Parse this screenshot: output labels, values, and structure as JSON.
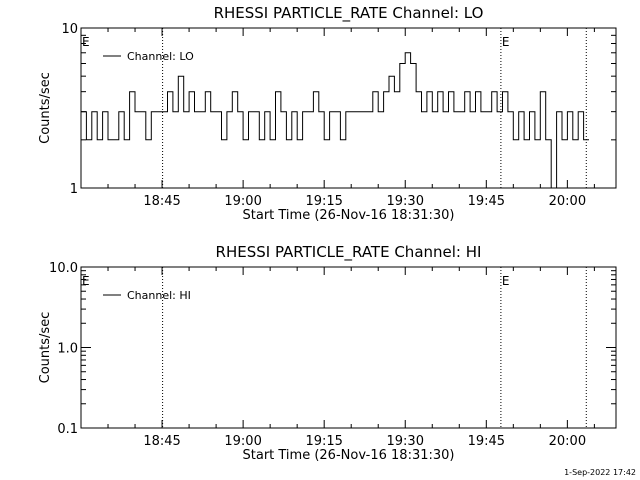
{
  "footer_timestamp": "1-Sep-2022 17:42",
  "chart_data": [
    {
      "type": "line",
      "title": "RHESSI PARTICLE_RATE Channel: LO",
      "xlabel": "Start Time (26-Nov-16 18:31:30)",
      "ylabel": "Counts/sec",
      "yscale": "log",
      "xlim_minutes": [
        0,
        99
      ],
      "ylim": [
        1,
        10
      ],
      "x_ticks": [
        {
          "minute": 15,
          "label": "18:45"
        },
        {
          "minute": 30,
          "label": "19:00"
        },
        {
          "minute": 45,
          "label": "19:15"
        },
        {
          "minute": 60,
          "label": "19:30"
        },
        {
          "minute": 75,
          "label": "19:45"
        },
        {
          "minute": 90,
          "label": "20:00"
        }
      ],
      "y_ticks": [
        {
          "value": 1,
          "label": "1"
        },
        {
          "value": 10,
          "label": "10"
        }
      ],
      "legend": {
        "label": "Channel: LO",
        "placement": "top-left"
      },
      "markers": [
        {
          "minute": 15.1,
          "label": ""
        },
        {
          "minute": 77.7,
          "label": "E"
        },
        {
          "minute": 93.5,
          "label": ""
        }
      ],
      "start_label": "E",
      "series": [
        {
          "name": "Channel: LO",
          "x": [
            0,
            1,
            2,
            3,
            4,
            5,
            6,
            7,
            8,
            9,
            10,
            11,
            12,
            13,
            14,
            15,
            16,
            17,
            18,
            19,
            20,
            21,
            22,
            23,
            24,
            25,
            26,
            27,
            28,
            29,
            30,
            31,
            32,
            33,
            34,
            35,
            36,
            37,
            38,
            39,
            40,
            41,
            42,
            43,
            44,
            45,
            46,
            47,
            48,
            49,
            50,
            51,
            52,
            53,
            54,
            55,
            56,
            57,
            58,
            59,
            60,
            61,
            62,
            63,
            64,
            65,
            66,
            67,
            68,
            69,
            70,
            71,
            72,
            73,
            74,
            75,
            76,
            77,
            78,
            79,
            80,
            81,
            82,
            83,
            84,
            85,
            86,
            87,
            88,
            89,
            90,
            91,
            92,
            93
          ],
          "values": [
            3,
            2,
            3,
            2,
            3,
            2,
            2,
            3,
            2,
            4,
            3,
            3,
            2,
            3,
            3,
            3,
            4,
            3,
            5,
            3,
            4,
            3,
            3,
            4,
            3,
            3,
            2,
            3,
            4,
            3,
            2,
            3,
            3,
            2,
            3,
            2,
            4,
            3,
            2,
            3,
            2,
            3,
            3,
            4,
            3,
            2,
            3,
            3,
            2,
            3,
            3,
            3,
            3,
            3,
            4,
            3,
            4,
            5,
            4,
            6,
            7,
            6,
            4,
            3,
            4,
            3,
            4,
            3,
            4,
            3,
            3,
            4,
            3,
            4,
            3,
            3,
            4,
            3,
            4,
            3,
            2,
            3,
            2,
            3,
            2,
            4,
            2,
            1,
            3,
            2,
            3,
            2,
            3,
            2
          ]
        }
      ]
    },
    {
      "type": "line",
      "title": "RHESSI PARTICLE_RATE Channel: HI",
      "xlabel": "Start Time (26-Nov-16 18:31:30)",
      "ylabel": "Counts/sec",
      "yscale": "log",
      "xlim_minutes": [
        0,
        99
      ],
      "ylim": [
        0.1,
        10
      ],
      "x_ticks": [
        {
          "minute": 15,
          "label": "18:45"
        },
        {
          "minute": 30,
          "label": "19:00"
        },
        {
          "minute": 45,
          "label": "19:15"
        },
        {
          "minute": 60,
          "label": "19:30"
        },
        {
          "minute": 75,
          "label": "19:45"
        },
        {
          "minute": 90,
          "label": "20:00"
        }
      ],
      "y_ticks": [
        {
          "value": 0.1,
          "label": "0.1"
        },
        {
          "value": 1,
          "label": "1.0"
        },
        {
          "value": 10,
          "label": "10.0"
        }
      ],
      "legend": {
        "label": "Channel: HI",
        "placement": "top-left"
      },
      "markers": [
        {
          "minute": 15.1,
          "label": ""
        },
        {
          "minute": 77.7,
          "label": "E"
        },
        {
          "minute": 93.5,
          "label": ""
        }
      ],
      "start_label": "E",
      "series": [
        {
          "name": "Channel: HI",
          "x": [],
          "values": []
        }
      ]
    }
  ]
}
